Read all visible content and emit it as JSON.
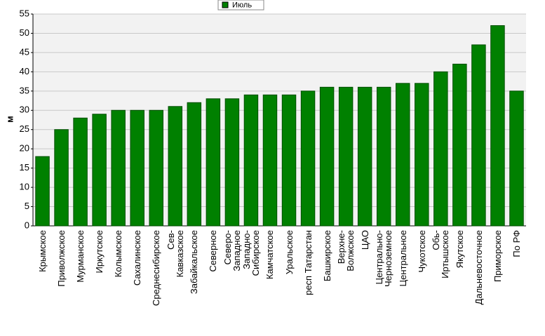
{
  "chart_data": {
    "type": "bar",
    "ylabel": "м",
    "legend": "Июль",
    "color": "#008000",
    "categories": [
      "Крымское",
      "Приволжское",
      "Мурманское",
      "Иркутское",
      "Колымское",
      "Сахалинское",
      "Среднесибирское",
      "Сев-\nКавказское",
      "Забайкальское",
      "Северное",
      "Северо-\nЗападное",
      "Западно-\nСибирское",
      "Камчатское",
      "Уральское",
      "респ Татарстан",
      "Башкирское",
      "Верхне-\nВолжское",
      "ЦАО",
      "Центрально-\nЧерноземное",
      "Центральное",
      "Чукотское",
      "Обь-\nИртышское",
      "Якутское",
      "Дальневосточное",
      "Приморское",
      "По РФ"
    ],
    "values": [
      18,
      25,
      28,
      29,
      30,
      30,
      30,
      31,
      32,
      33,
      33,
      34,
      34,
      34,
      35,
      36,
      36,
      36,
      36,
      37,
      37,
      40,
      42,
      47,
      52,
      35
    ],
    "ylim": [
      0,
      55
    ],
    "yticks": [
      0,
      5,
      10,
      15,
      20,
      25,
      30,
      35,
      40,
      45,
      50,
      55
    ],
    "grid": true
  }
}
